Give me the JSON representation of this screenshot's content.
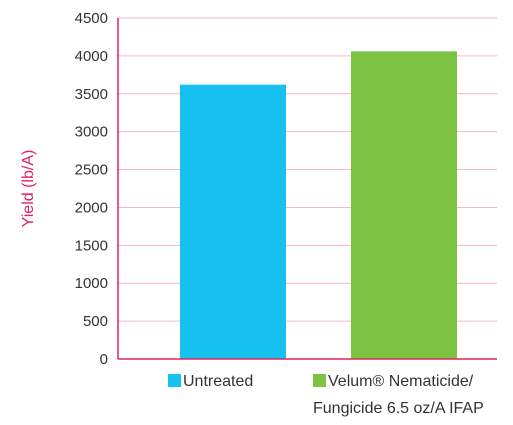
{
  "chart_data": {
    "type": "bar",
    "title": "",
    "xlabel": "",
    "ylabel": "Yield (lb/A)",
    "ylim": [
      0,
      4500
    ],
    "yticks": [
      0,
      500,
      1000,
      1500,
      2000,
      2500,
      3000,
      3500,
      4000,
      4500
    ],
    "grid": true,
    "legend_position": "bottom",
    "categories": [
      "Untreated",
      "Velum® Nematicide/ Fungicide 6.5 oz/A IFAP"
    ],
    "series": [
      {
        "name": "Untreated",
        "values": [
          3620,
          null
        ],
        "color": "#17c1ef"
      },
      {
        "name": "Velum® Nematicide/ Fungicide 6.5 oz/A IFAP",
        "values": [
          null,
          4060
        ],
        "color": "#7cc243"
      }
    ],
    "legend": [
      {
        "lines": [
          "Untreated"
        ],
        "color": "#17c1ef"
      },
      {
        "lines": [
          "Velum® Nematicide/",
          "Fungicide 6.5 oz/A IFAP"
        ],
        "color": "#7cc243"
      }
    ],
    "axis_color": "#e0245e",
    "grid_color": "#f2b8cc"
  }
}
